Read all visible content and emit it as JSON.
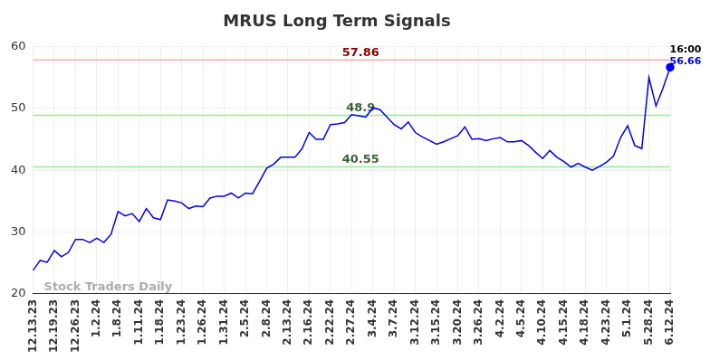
{
  "chart_data": {
    "type": "line",
    "title": "MRUS Long Term Signals",
    "categories": [
      "12.13.23",
      null,
      null,
      "12.19.23",
      null,
      null,
      "12.26.23",
      null,
      null,
      "1.2.24",
      null,
      null,
      "1.8.24",
      null,
      null,
      "1.11.24",
      null,
      null,
      "1.18.24",
      null,
      null,
      "1.23.24",
      null,
      null,
      "1.26.24",
      null,
      null,
      "1.31.24",
      null,
      null,
      "2.5.24",
      null,
      null,
      "2.8.24",
      null,
      null,
      "2.13.24",
      null,
      null,
      "2.16.24",
      null,
      null,
      "2.22.24",
      null,
      null,
      "2.27.24",
      null,
      null,
      "3.4.24",
      null,
      null,
      "3.7.24",
      null,
      null,
      "3.12.24",
      null,
      null,
      "3.15.24",
      null,
      null,
      "3.20.24",
      null,
      null,
      "3.26.24",
      null,
      null,
      "4.2.24",
      null,
      null,
      "4.5.24",
      null,
      null,
      "4.10.24",
      null,
      null,
      "4.15.24",
      null,
      null,
      "4.18.24",
      null,
      null,
      "4.23.24",
      null,
      null,
      "5.1.24",
      null,
      null,
      "5.28.24",
      null,
      null,
      "6.12.24"
    ],
    "values": [
      23.8,
      25.4,
      25.1,
      27.0,
      26.0,
      26.7,
      28.8,
      28.8,
      28.3,
      29.0,
      28.3,
      29.6,
      33.3,
      32.6,
      33.0,
      31.7,
      33.8,
      32.3,
      32.0,
      35.2,
      35.0,
      34.7,
      33.8,
      34.2,
      34.1,
      35.5,
      35.8,
      35.8,
      36.3,
      35.5,
      36.3,
      36.2,
      38.2,
      40.3,
      41.0,
      42.1,
      42.1,
      42.1,
      43.5,
      46.1,
      45.0,
      45.0,
      47.4,
      47.5,
      47.7,
      49.0,
      48.8,
      48.6,
      50.1,
      49.8,
      48.6,
      47.4,
      46.7,
      47.8,
      46.1,
      45.4,
      44.8,
      44.2,
      44.6,
      45.1,
      45.6,
      47.0,
      45.0,
      45.1,
      44.8,
      45.1,
      45.3,
      44.6,
      44.6,
      44.8,
      44.0,
      42.9,
      41.9,
      43.2,
      42.1,
      41.4,
      40.5,
      41.1,
      40.5,
      40.0,
      40.6,
      41.3,
      42.3,
      45.3,
      47.2,
      44.0,
      43.5,
      55.0,
      50.4,
      53.3,
      56.66
    ],
    "color": "#0000ee",
    "ylim": [
      20,
      60
    ],
    "yticks": [
      20,
      30,
      40,
      50,
      60
    ],
    "grid": true,
    "signals": [
      {
        "value": 57.86,
        "color": "#ffaaaa"
      },
      {
        "value": 48.9,
        "color": "#90ee90"
      },
      {
        "value": 40.55,
        "color": "#90ee90"
      }
    ],
    "end_label": "16:00",
    "watermark": "Stock Traders Daily"
  }
}
